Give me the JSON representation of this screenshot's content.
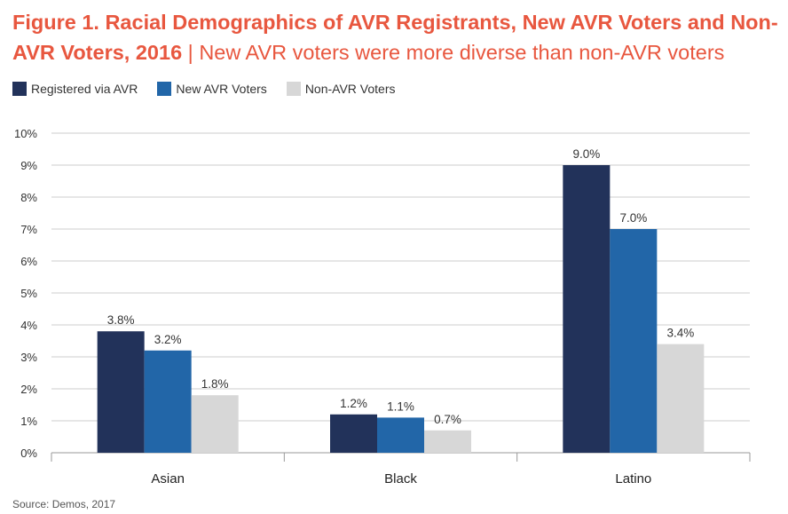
{
  "title_bold": "Figure 1. Racial Demographics of AVR Registrants, New AVR Voters and Non-AVR Voters, 2016",
  "title_separator": "|",
  "title_sub": "New AVR voters were more diverse than non-AVR voters",
  "source": "Source: Demos, 2017",
  "colors": {
    "title": "#e8573f",
    "registered_via_avr": "#22325a",
    "new_avr_voters": "#2266a8",
    "non_avr_voters": "#d7d7d7",
    "grid": "#cccccc",
    "axis_text": "#333333"
  },
  "chart_data": {
    "type": "bar",
    "categories": [
      "Asian",
      "Black",
      "Latino"
    ],
    "series": [
      {
        "name": "Registered via AVR",
        "values": [
          3.8,
          1.2,
          9.0
        ],
        "labels": [
          "3.8%",
          "1.2%",
          "9.0%"
        ],
        "color": "#22325a"
      },
      {
        "name": "New AVR Voters",
        "values": [
          3.2,
          1.1,
          7.0
        ],
        "labels": [
          "3.2%",
          "1.1%",
          "7.0%"
        ],
        "color": "#2266a8"
      },
      {
        "name": "Non-AVR Voters",
        "values": [
          1.8,
          0.7,
          3.4
        ],
        "labels": [
          "1.8%",
          "0.7%",
          "3.4%"
        ],
        "color": "#d7d7d7"
      }
    ],
    "yticks": [
      "0%",
      "1%",
      "2%",
      "3%",
      "4%",
      "5%",
      "6%",
      "7%",
      "8%",
      "9%",
      "10%"
    ],
    "ylim": [
      0,
      10
    ],
    "grid": true,
    "legend_position": "top-left"
  }
}
